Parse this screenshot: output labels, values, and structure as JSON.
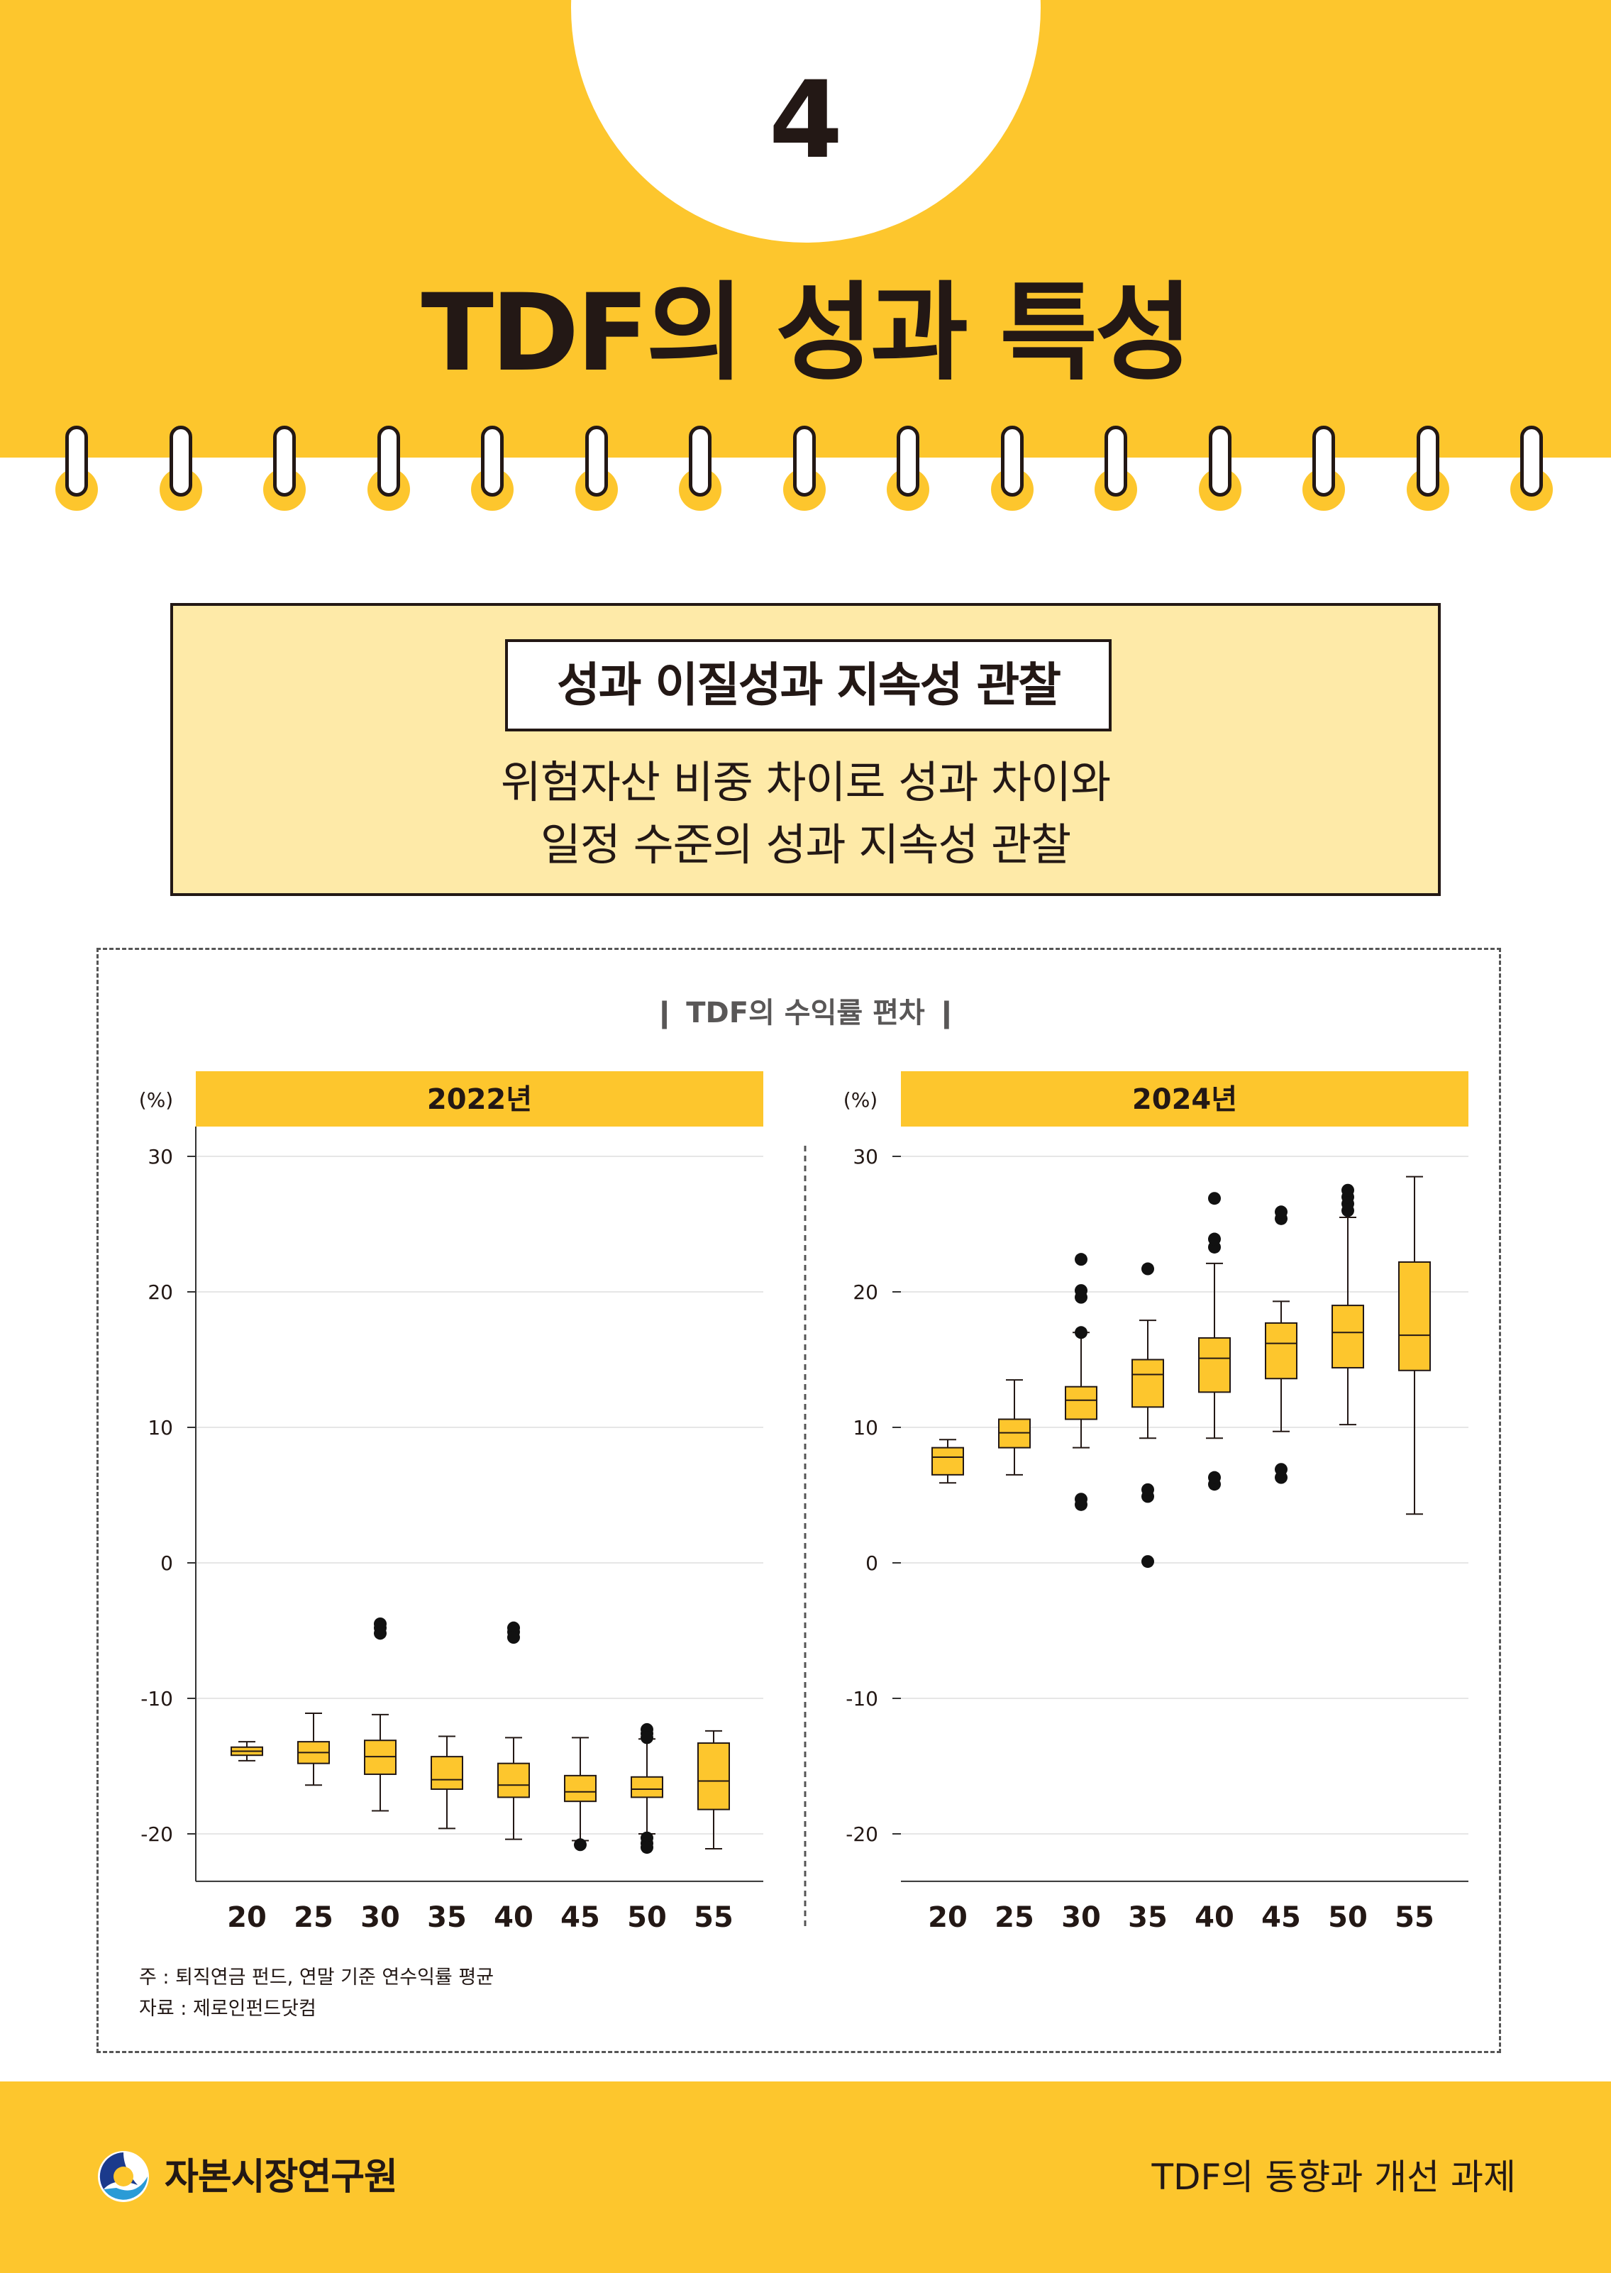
{
  "header": {
    "page_number": "4",
    "title": "TDF의 성과 특성"
  },
  "summary": {
    "label": "성과 이질성과 지속성 관찰",
    "description_lines": [
      "위험자산 비중 차이로 성과 차이와",
      "일정 수준의 성과 지속성 관찰"
    ]
  },
  "notes": {
    "note": "주    : 퇴직연금 펀드, 연말 기준 연수익률 평균",
    "source": "자료 : 제로인펀드닷컴"
  },
  "footer": {
    "organization": "자본시장연구원",
    "document_title": "TDF의 동향과 개선 과제"
  },
  "colors": {
    "accent": "#fdc62d",
    "light_accent": "#feeaa8",
    "box_fill": "#fdc62d",
    "ink": "#231815"
  },
  "chart_data": {
    "type": "boxplot",
    "title": "❙  TDF의 수익률 편차  ❙",
    "charts": [
      {
        "panel_title": "2022년",
        "ylabel": "(%)",
        "ylim": [
          -23.5,
          32
        ],
        "yticks": [
          30,
          20,
          10,
          0,
          -10,
          -20
        ],
        "categories": [
          "20",
          "25",
          "30",
          "35",
          "40",
          "45",
          "50",
          "55"
        ],
        "boxes": [
          {
            "min": -14.6,
            "q1": -14.2,
            "median": -13.9,
            "q3": -13.6,
            "max": -13.2,
            "outliers": []
          },
          {
            "min": -16.4,
            "q1": -14.8,
            "median": -14.0,
            "q3": -13.2,
            "max": -11.1,
            "outliers": []
          },
          {
            "min": -18.3,
            "q1": -15.6,
            "median": -14.3,
            "q3": -13.1,
            "max": -11.2,
            "outliers": [
              -4.5,
              -4.8,
              -5.2
            ]
          },
          {
            "min": -19.6,
            "q1": -16.7,
            "median": -16.0,
            "q3": -14.3,
            "max": -12.8,
            "outliers": []
          },
          {
            "min": -20.4,
            "q1": -17.3,
            "median": -16.4,
            "q3": -14.8,
            "max": -12.9,
            "outliers": [
              -4.8,
              -5.1,
              -5.5
            ]
          },
          {
            "min": -20.5,
            "q1": -17.6,
            "median": -16.9,
            "q3": -15.7,
            "max": -12.9,
            "outliers": [
              -20.8
            ]
          },
          {
            "min": -20.0,
            "q1": -17.3,
            "median": -16.7,
            "q3": -15.8,
            "max": -13.0,
            "outliers": [
              -12.3,
              -12.6,
              -12.9,
              -20.3,
              -20.7,
              -21.0
            ]
          },
          {
            "min": -21.1,
            "q1": -18.2,
            "median": -16.1,
            "q3": -13.3,
            "max": -12.4,
            "outliers": []
          }
        ]
      },
      {
        "panel_title": "2024년",
        "ylabel": "(%)",
        "ylim": [
          -23.5,
          32
        ],
        "yticks": [
          30,
          20,
          10,
          0,
          -10,
          -20
        ],
        "categories": [
          "20",
          "25",
          "30",
          "35",
          "40",
          "45",
          "50",
          "55"
        ],
        "boxes": [
          {
            "min": 5.9,
            "q1": 6.5,
            "median": 7.8,
            "q3": 8.5,
            "max": 9.1,
            "outliers": []
          },
          {
            "min": 6.5,
            "q1": 8.5,
            "median": 9.6,
            "q3": 10.6,
            "max": 13.5,
            "outliers": []
          },
          {
            "min": 8.5,
            "q1": 10.6,
            "median": 12.0,
            "q3": 13.0,
            "max": 17.0,
            "outliers": [
              4.3,
              4.7,
              17.0,
              19.6,
              20.1,
              22.4
            ]
          },
          {
            "min": 9.2,
            "q1": 11.5,
            "median": 13.9,
            "q3": 15.0,
            "max": 17.9,
            "outliers": [
              0.1,
              4.9,
              5.4,
              21.7
            ]
          },
          {
            "min": 9.2,
            "q1": 12.6,
            "median": 15.1,
            "q3": 16.6,
            "max": 22.1,
            "outliers": [
              5.8,
              6.3,
              23.3,
              23.9,
              26.9
            ]
          },
          {
            "min": 9.7,
            "q1": 13.6,
            "median": 16.2,
            "q3": 17.7,
            "max": 19.3,
            "outliers": [
              6.3,
              6.9,
              25.4,
              25.9
            ]
          },
          {
            "min": 10.2,
            "q1": 14.4,
            "median": 17.0,
            "q3": 19.0,
            "max": 25.5,
            "outliers": [
              26.0,
              26.5,
              27.0,
              27.5
            ]
          },
          {
            "min": 3.6,
            "q1": 14.2,
            "median": 16.8,
            "q3": 22.2,
            "max": 28.5,
            "outliers": []
          }
        ]
      }
    ]
  }
}
